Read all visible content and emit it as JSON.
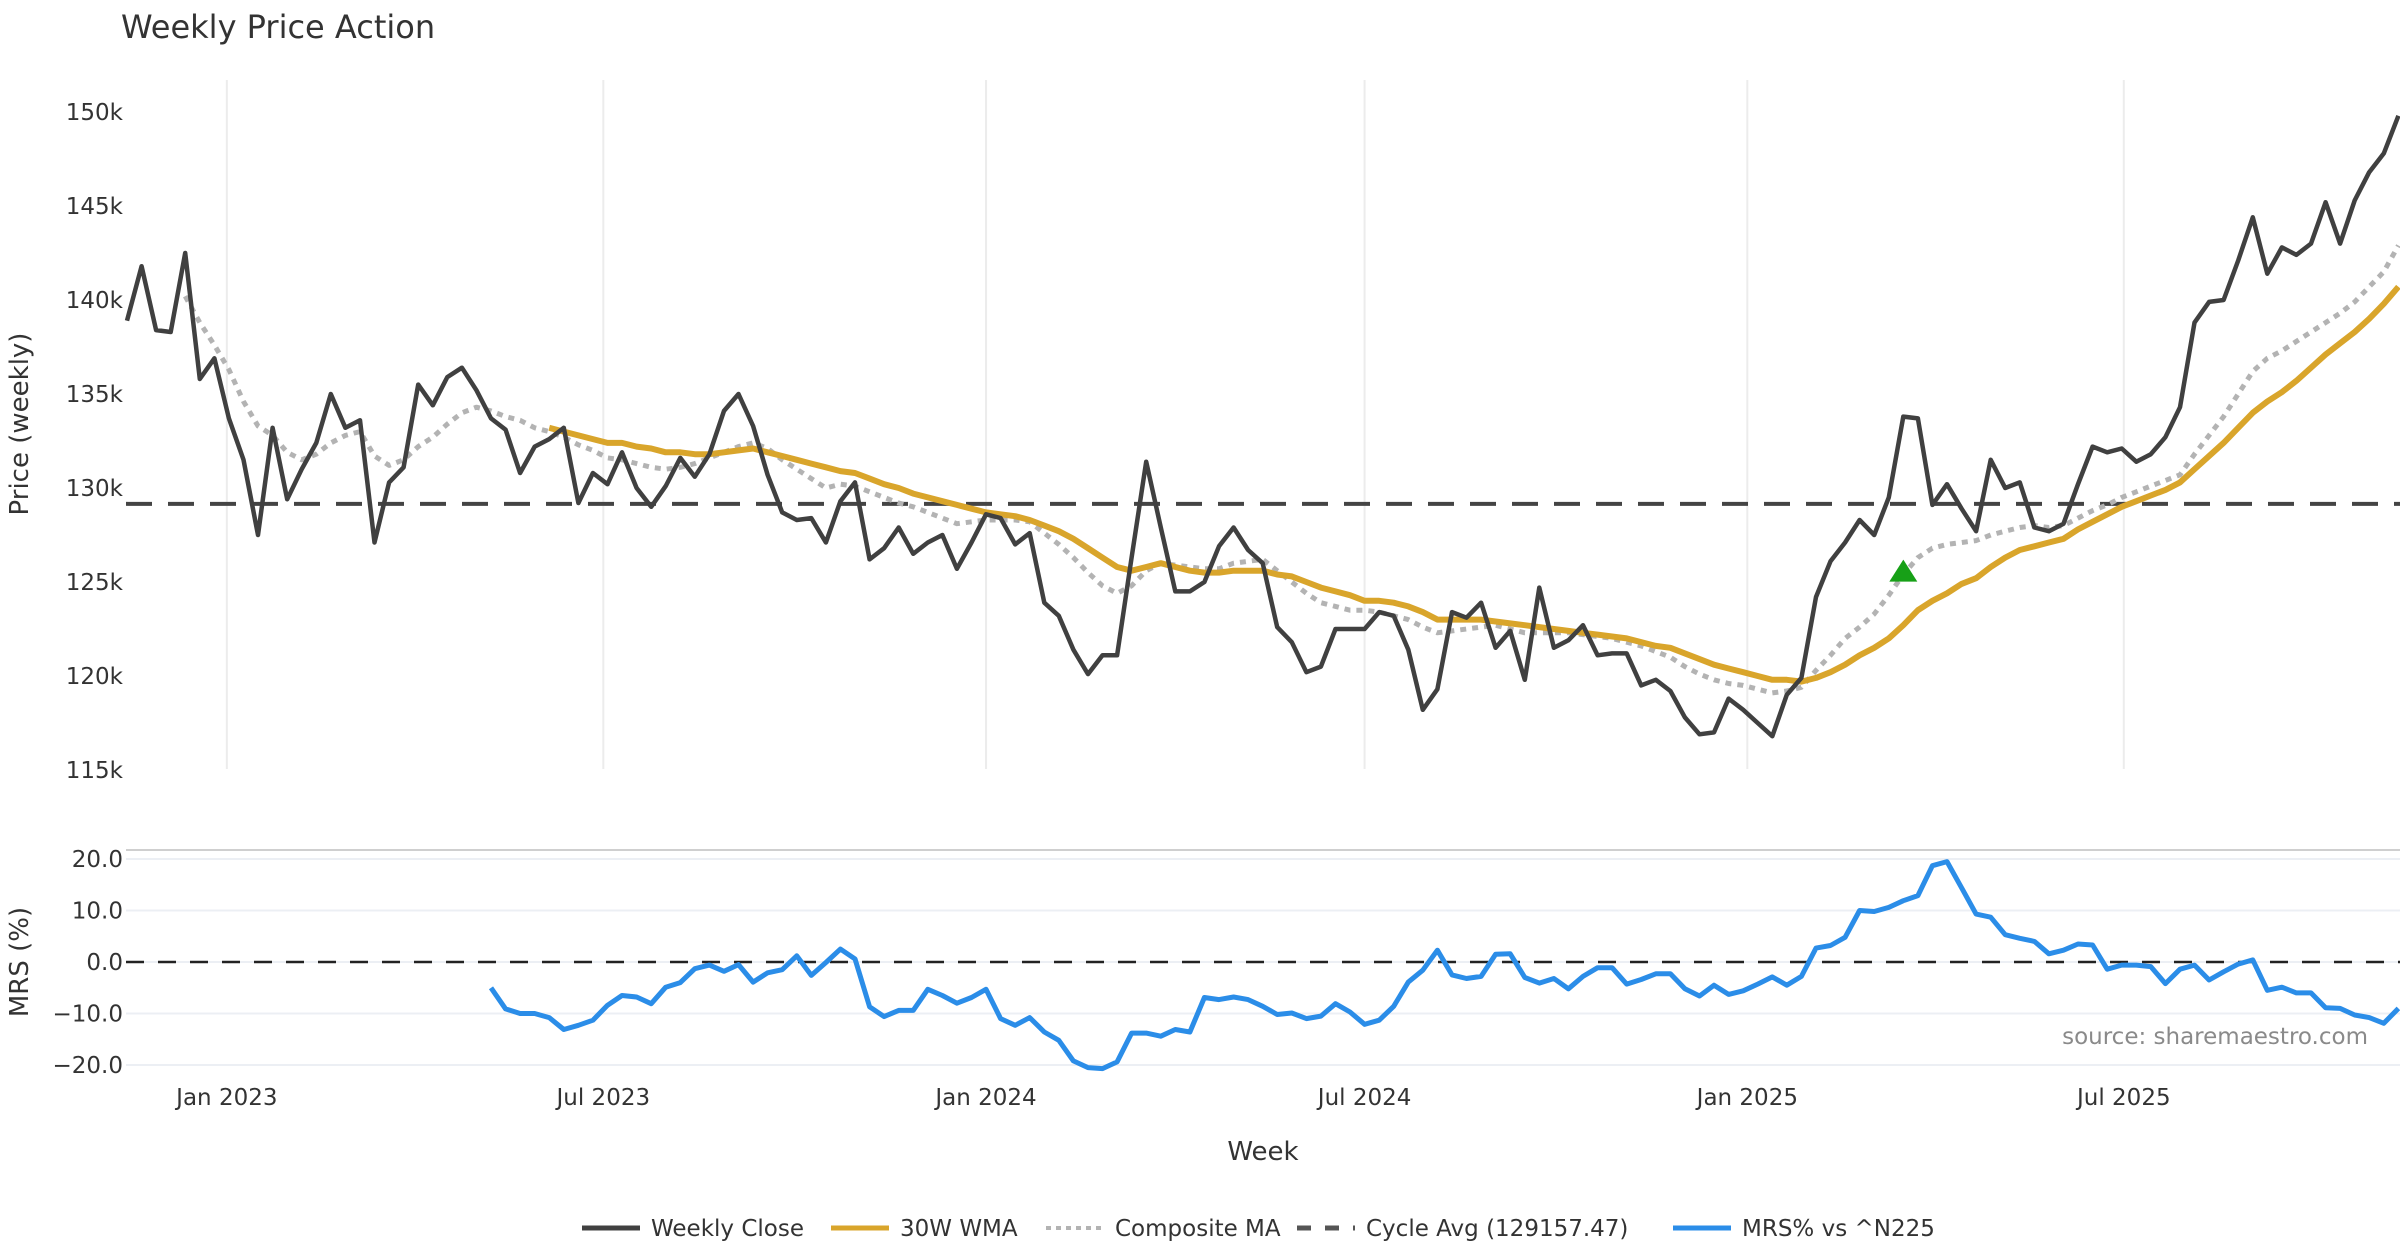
{
  "chart_data": [
    {
      "type": "line",
      "title": "Weekly Price Action",
      "xlabel": "Week",
      "ylabel": "Price (weekly)",
      "x_start": "2022-11-14",
      "x_step_days": 7,
      "ylim": [
        115000,
        151000
      ],
      "yticks": [
        {
          "value": 150000,
          "label": "150k"
        },
        {
          "value": 145000,
          "label": "145k"
        },
        {
          "value": 140000,
          "label": "140k"
        },
        {
          "value": 135000,
          "label": "135k"
        },
        {
          "value": 130000,
          "label": "130k"
        },
        {
          "value": 125000,
          "label": "125k"
        },
        {
          "value": 120000,
          "label": "120k"
        },
        {
          "value": 115000,
          "label": "115k"
        }
      ],
      "xticks": [
        {
          "date": "2023-01-01",
          "label": "Jan 2023"
        },
        {
          "date": "2023-07-01",
          "label": "Jul 2023"
        },
        {
          "date": "2024-01-01",
          "label": "Jan 2024"
        },
        {
          "date": "2024-07-01",
          "label": "Jul 2024"
        },
        {
          "date": "2025-01-01",
          "label": "Jan 2025"
        },
        {
          "date": "2025-07-01",
          "label": "Jul 2025"
        }
      ],
      "grid": "vertical",
      "series": [
        {
          "name": "Weekly Close",
          "color": "#404040",
          "style": "solid",
          "start_index": 0,
          "values": [
            138900,
            141800,
            138400,
            138300,
            142500,
            135800,
            136900,
            133700,
            131500,
            127500,
            133200,
            129400,
            131000,
            132400,
            135000,
            133200,
            133600,
            127100,
            130300,
            131100,
            135500,
            134400,
            135900,
            136400,
            135200,
            133700,
            133100,
            130800,
            132200,
            132600,
            133200,
            129200,
            130800,
            130200,
            131900,
            130000,
            129000,
            130100,
            131600,
            130600,
            131800,
            134100,
            135000,
            133300,
            130700,
            128700,
            128300,
            128400,
            127100,
            129300,
            130300,
            126200,
            126800,
            127900,
            126500,
            127100,
            127500,
            125700,
            127100,
            128600,
            128400,
            127000,
            127600,
            123900,
            123200,
            121400,
            120100,
            121100,
            121100,
            126300,
            131400,
            127900,
            124500,
            124500,
            125000,
            126900,
            127900,
            126700,
            126000,
            122600,
            121800,
            120200,
            120500,
            122500,
            122500,
            122500,
            123400,
            123200,
            121400,
            118200,
            119300,
            123400,
            123100,
            123900,
            121500,
            122400,
            119800,
            124700,
            121500,
            121900,
            122700,
            121100,
            121200,
            121200,
            119500,
            119800,
            119200,
            117800,
            116900,
            117000,
            118800,
            118200,
            117500,
            116800,
            119000,
            119900,
            124200,
            126100,
            127100,
            128300,
            127500,
            129500,
            133800,
            133700,
            129100,
            130200,
            128900,
            127700,
            131500,
            130000,
            130300,
            127900,
            127700,
            128100,
            130200,
            132200,
            131900,
            132100,
            131400,
            131800,
            132700,
            134300,
            138800,
            139900,
            140000,
            142100,
            144400,
            141400,
            142800,
            142400,
            143000,
            145200,
            143000,
            145300,
            146800,
            147800,
            149800
          ]
        },
        {
          "name": "30W WMA",
          "color": "#d9a52b",
          "style": "solid",
          "start_index": 29,
          "values": [
            133200,
            133000,
            132800,
            132600,
            132400,
            132400,
            132200,
            132100,
            131900,
            131900,
            131800,
            131800,
            131900,
            132000,
            132100,
            131900,
            131700,
            131500,
            131300,
            131100,
            130900,
            130800,
            130500,
            130200,
            130000,
            129700,
            129500,
            129300,
            129100,
            128900,
            128700,
            128600,
            128500,
            128300,
            128000,
            127700,
            127300,
            126800,
            126300,
            125800,
            125600,
            125800,
            126000,
            125800,
            125600,
            125500,
            125500,
            125600,
            125600,
            125600,
            125400,
            125300,
            125000,
            124700,
            124500,
            124300,
            124000,
            124000,
            123900,
            123700,
            123400,
            123000,
            123000,
            123000,
            123000,
            122900,
            122800,
            122700,
            122600,
            122500,
            122400,
            122300,
            122200,
            122100,
            122000,
            121800,
            121600,
            121500,
            121200,
            120900,
            120600,
            120400,
            120200,
            120000,
            119800,
            119800,
            119700,
            119900,
            120200,
            120600,
            121100,
            121500,
            122000,
            122700,
            123500,
            124000,
            124400,
            124900,
            125200,
            125800,
            126300,
            126700,
            126900,
            127100,
            127300,
            127800,
            128200,
            128600,
            129000,
            129300,
            129600,
            129900,
            130300,
            131000,
            131700,
            132400,
            133200,
            134000,
            134600,
            135100,
            135700,
            136400,
            137100,
            137700,
            138300,
            139000,
            139800,
            140700
          ]
        },
        {
          "name": "Composite MA",
          "color": "#b3b3b3",
          "style": "dotted",
          "start_index": 4,
          "values": [
            140200,
            138800,
            137600,
            136300,
            134600,
            133300,
            132800,
            131900,
            131500,
            131800,
            132400,
            132800,
            133000,
            131700,
            131200,
            131500,
            132200,
            132700,
            133400,
            134000,
            134300,
            134100,
            133800,
            133600,
            133200,
            133000,
            132700,
            132300,
            132000,
            131600,
            131500,
            131300,
            131100,
            131000,
            131100,
            131300,
            131600,
            131900,
            132200,
            132400,
            132100,
            131500,
            131000,
            130500,
            130000,
            130200,
            130100,
            129800,
            129500,
            129200,
            129000,
            128700,
            128400,
            128100,
            128200,
            128300,
            128300,
            128300,
            128200,
            127600,
            127000,
            126300,
            125500,
            124800,
            124400,
            124800,
            125600,
            126000,
            125900,
            125800,
            125700,
            125700,
            126000,
            126100,
            126200,
            125600,
            125000,
            124400,
            123900,
            123700,
            123500,
            123500,
            123400,
            123200,
            123000,
            122600,
            122300,
            122400,
            122500,
            122600,
            122700,
            122500,
            122300,
            122300,
            122300,
            122300,
            122200,
            122100,
            122000,
            121800,
            121600,
            121300,
            121000,
            120500,
            120100,
            119800,
            119600,
            119500,
            119300,
            119100,
            119200,
            119400,
            120300,
            121100,
            122000,
            122600,
            123300,
            124300,
            125400,
            126300,
            126800,
            127000,
            127100,
            127200,
            127500,
            127700,
            127900,
            128000,
            127900,
            128000,
            128400,
            128800,
            129100,
            129500,
            129800,
            130100,
            130400,
            130700,
            131800,
            132800,
            133800,
            135000,
            136200,
            136900,
            137300,
            137800,
            138300,
            138800,
            139300,
            139900,
            140700,
            141500,
            142900
          ]
        },
        {
          "name": "Cycle Avg (129157.47)",
          "color": "#444444",
          "style": "dashed",
          "constant": 129157.47
        }
      ],
      "markers": [
        {
          "type": "triangle-up",
          "color": "#17a017",
          "index": 122,
          "value": 125500
        }
      ],
      "annotation": "source: sharemaestro.com"
    },
    {
      "type": "line",
      "ylabel": "MRS (%)",
      "ylim": [
        -21,
        21
      ],
      "yticks": [
        {
          "value": 20,
          "label": "20.0"
        },
        {
          "value": 10,
          "label": "10.0"
        },
        {
          "value": 0,
          "label": "0.0"
        },
        {
          "value": -10,
          "label": "−10.0"
        },
        {
          "value": -20,
          "label": "−20.0"
        }
      ],
      "grid": "horizontal",
      "zero_line": "dashed",
      "series": [
        {
          "name": "MRS% vs ^N225",
          "color": "#2b8de8",
          "style": "solid",
          "start_index": 25,
          "values": [
            -5.0,
            -9.1,
            -10.0,
            -10.0,
            -10.8,
            -13.1,
            -12.3,
            -11.3,
            -8.4,
            -6.5,
            -6.8,
            -8.1,
            -4.9,
            -4.0,
            -1.3,
            -0.6,
            -1.8,
            -0.5,
            -3.9,
            -2.1,
            -1.5,
            1.2,
            -2.6,
            -0.1,
            2.5,
            0.6,
            -8.7,
            -10.6,
            -9.4,
            -9.4,
            -5.3,
            -6.5,
            -8.0,
            -6.9,
            -5.3,
            -11.0,
            -12.3,
            -10.8,
            -13.6,
            -15.2,
            -19.2,
            -20.5,
            -20.7,
            -19.4,
            -13.8,
            -13.8,
            -14.4,
            -13.1,
            -13.6,
            -6.9,
            -7.3,
            -6.8,
            -7.3,
            -8.6,
            -10.2,
            -9.9,
            -11.0,
            -10.5,
            -8.1,
            -9.7,
            -12.1,
            -11.3,
            -8.6,
            -3.9,
            -1.6,
            2.3,
            -2.5,
            -3.2,
            -2.8,
            1.5,
            1.6,
            -3.0,
            -4.1,
            -3.2,
            -5.2,
            -2.8,
            -1.1,
            -1.1,
            -4.3,
            -3.4,
            -2.3,
            -2.3,
            -5.2,
            -6.6,
            -4.5,
            -6.3,
            -5.6,
            -4.3,
            -2.9,
            -4.5,
            -2.8,
            2.7,
            3.2,
            4.8,
            10.0,
            9.8,
            10.6,
            11.9,
            12.9,
            18.7,
            19.5,
            14.4,
            9.3,
            8.7,
            5.3,
            4.6,
            4.0,
            1.6,
            2.3,
            3.5,
            3.3,
            -1.4,
            -0.6,
            -0.6,
            -0.9,
            -4.2,
            -1.4,
            -0.6,
            -3.5,
            -1.9,
            -0.4,
            0.4,
            -5.5,
            -4.9,
            -6.0,
            -6.0,
            -8.9,
            -9.0,
            -10.3,
            -10.8,
            -11.9,
            -9.0
          ]
        }
      ]
    }
  ],
  "legend": {
    "position": "bottom-center",
    "items": [
      {
        "label": "Weekly Close",
        "color": "#404040",
        "style": "solid"
      },
      {
        "label": "30W WMA",
        "color": "#d9a52b",
        "style": "solid"
      },
      {
        "label": "Composite MA",
        "color": "#b3b3b3",
        "style": "dotted"
      },
      {
        "label": "Cycle Avg (129157.47)",
        "color": "#555555",
        "style": "dashed"
      },
      {
        "label": "MRS% vs ^N225",
        "color": "#2b8de8",
        "style": "solid"
      }
    ]
  }
}
